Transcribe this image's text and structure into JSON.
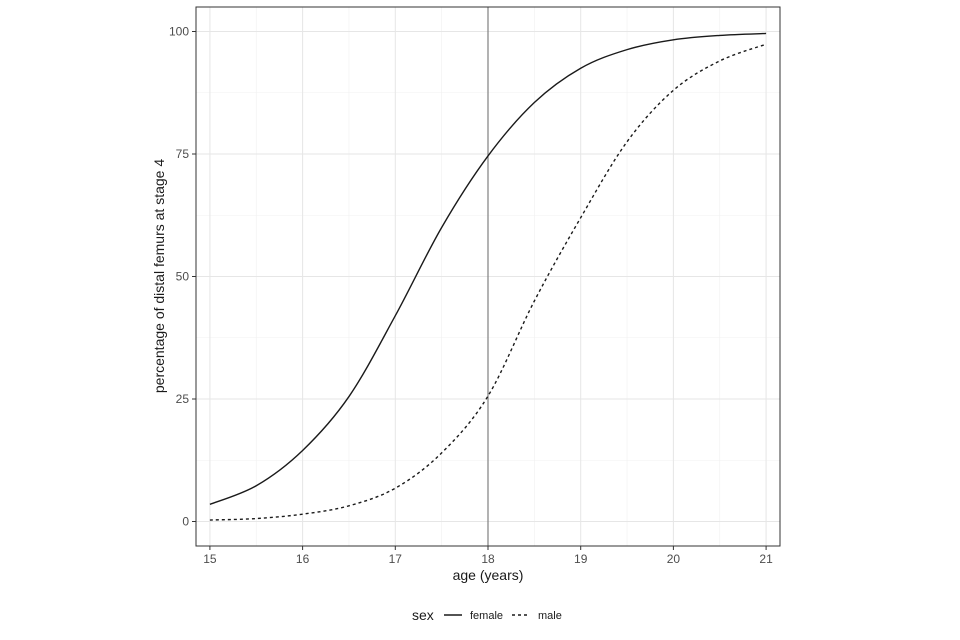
{
  "chart_data": {
    "type": "line",
    "xlabel": "age (years)",
    "ylabel": "percentage of distal femurs at stage 4",
    "xlim": [
      14.85,
      21.15
    ],
    "ylim": [
      -5,
      105
    ],
    "x_ticks": [
      15,
      16,
      17,
      18,
      19,
      20,
      21
    ],
    "y_ticks": [
      0,
      25,
      50,
      75,
      100
    ],
    "grid": true,
    "reference_line_x": 18,
    "legend": {
      "title": "sex",
      "position": "bottom"
    },
    "series": [
      {
        "name": "female",
        "line_style": "solid",
        "x": [
          15,
          15.5,
          16,
          16.5,
          17,
          17.5,
          18,
          18.5,
          19,
          19.5,
          20,
          20.5,
          21
        ],
        "y": [
          3.5,
          7.3,
          14.5,
          25.5,
          42,
          60,
          74.6,
          85.5,
          92.5,
          96.3,
          98.3,
          99.2,
          99.6
        ]
      },
      {
        "name": "male",
        "line_style": "dotted",
        "x": [
          15,
          15.5,
          16,
          16.5,
          17,
          17.5,
          18,
          18.5,
          19,
          19.5,
          20,
          20.5,
          21
        ],
        "y": [
          0.3,
          0.6,
          1.5,
          3.2,
          6.8,
          14,
          25.6,
          45,
          62,
          77.5,
          88,
          94,
          97.4
        ]
      }
    ]
  }
}
